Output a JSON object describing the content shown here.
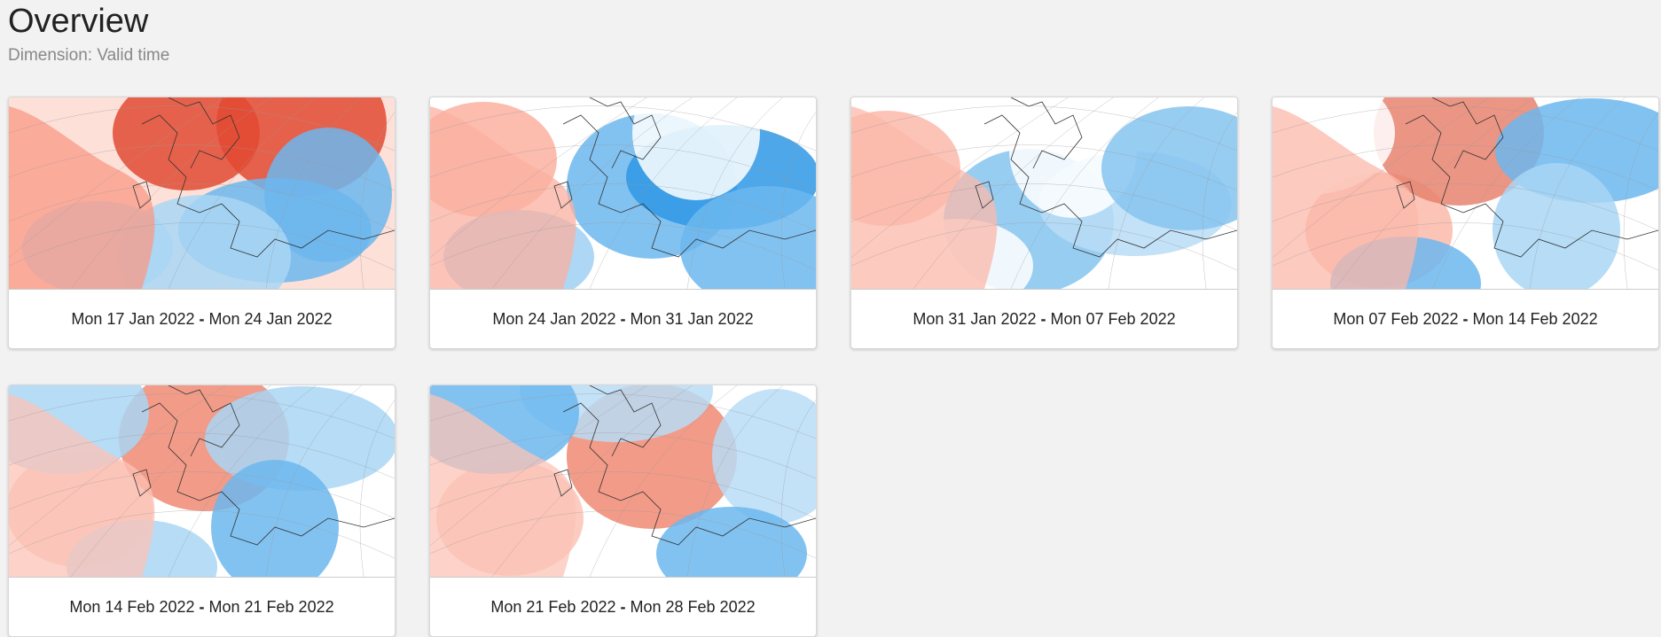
{
  "page": {
    "title": "Overview",
    "subtitle": "Dimension: Valid time"
  },
  "cards": [
    {
      "start": "Mon 17 Jan 2022",
      "sep": "-",
      "end": "Mon 24 Jan 2022",
      "palette": [
        "#fa9a86",
        "#fde0d8",
        "#e24a33",
        "#a9d6f5",
        "#6cb7ee"
      ]
    },
    {
      "start": "Mon 24 Jan 2022",
      "sep": "-",
      "end": "Mon 31 Jan 2022",
      "palette": [
        "#fbb0a0",
        "#ffffff",
        "#9fd0f3",
        "#6cb7ee",
        "#2f98e4"
      ]
    },
    {
      "start": "Mon 31 Jan 2022",
      "sep": "-",
      "end": "Mon 07 Feb 2022",
      "palette": [
        "#fbb8aa",
        "#ffffff",
        "#b9dcf6",
        "#86c4f0",
        "#5aaeea"
      ]
    },
    {
      "start": "Mon 07 Feb 2022",
      "sep": "-",
      "end": "Mon 14 Feb 2022",
      "palette": [
        "#fbb8aa",
        "#ffffff",
        "#e8836f",
        "#a9d6f5",
        "#6cb7ee"
      ]
    },
    {
      "start": "Mon 14 Feb 2022",
      "sep": "-",
      "end": "Mon 21 Feb 2022",
      "palette": [
        "#fcc3b6",
        "#ffffff",
        "#f08a73",
        "#a9d6f5",
        "#6cb7ee"
      ]
    },
    {
      "start": "Mon 21 Feb 2022",
      "sep": "-",
      "end": "Mon 28 Feb 2022",
      "palette": [
        "#fcc3b6",
        "#ffffff",
        "#f08a73",
        "#b9dcf6",
        "#6cb7ee"
      ]
    }
  ]
}
